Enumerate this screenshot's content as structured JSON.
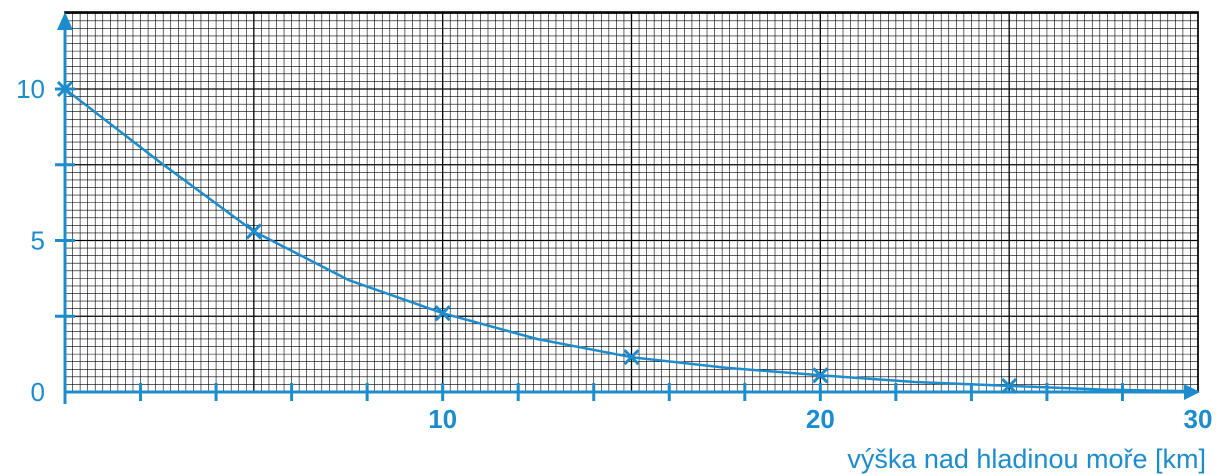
{
  "chart_data": {
    "type": "line",
    "title": "",
    "ylabel": "",
    "xlabel": "výška nad hladinou moře [km]",
    "xlim": [
      0,
      30
    ],
    "ylim": [
      0,
      12
    ],
    "grid": true,
    "x_tick_labels": [
      {
        "value": 10,
        "label": "10",
        "bold": true
      },
      {
        "value": 20,
        "label": "20",
        "bold": true
      },
      {
        "value": 30,
        "label": "30",
        "bold": true
      }
    ],
    "y_tick_labels": [
      {
        "value": 0,
        "label": "0"
      },
      {
        "value": 5,
        "label": "5"
      },
      {
        "value": 10,
        "label": "10"
      }
    ],
    "series": [
      {
        "color": "#1c8ccc",
        "markers": "x",
        "points": [
          {
            "x": 0,
            "y": 10
          },
          {
            "x": 5,
            "y": 5.3
          },
          {
            "x": 10,
            "y": 2.6
          },
          {
            "x": 15,
            "y": 1.15
          },
          {
            "x": 20,
            "y": 0.55
          },
          {
            "x": 25,
            "y": 0.2
          }
        ],
        "curve": [
          {
            "x": 0,
            "y": 10
          },
          {
            "x": 2.5,
            "y": 7.6
          },
          {
            "x": 5,
            "y": 5.3
          },
          {
            "x": 7.5,
            "y": 3.7
          },
          {
            "x": 10,
            "y": 2.6
          },
          {
            "x": 12.5,
            "y": 1.75
          },
          {
            "x": 15,
            "y": 1.15
          },
          {
            "x": 17.5,
            "y": 0.8
          },
          {
            "x": 20,
            "y": 0.55
          },
          {
            "x": 22.5,
            "y": 0.33
          },
          {
            "x": 25,
            "y": 0.2
          },
          {
            "x": 27.5,
            "y": 0.08
          },
          {
            "x": 30,
            "y": 0.02
          }
        ]
      }
    ]
  }
}
